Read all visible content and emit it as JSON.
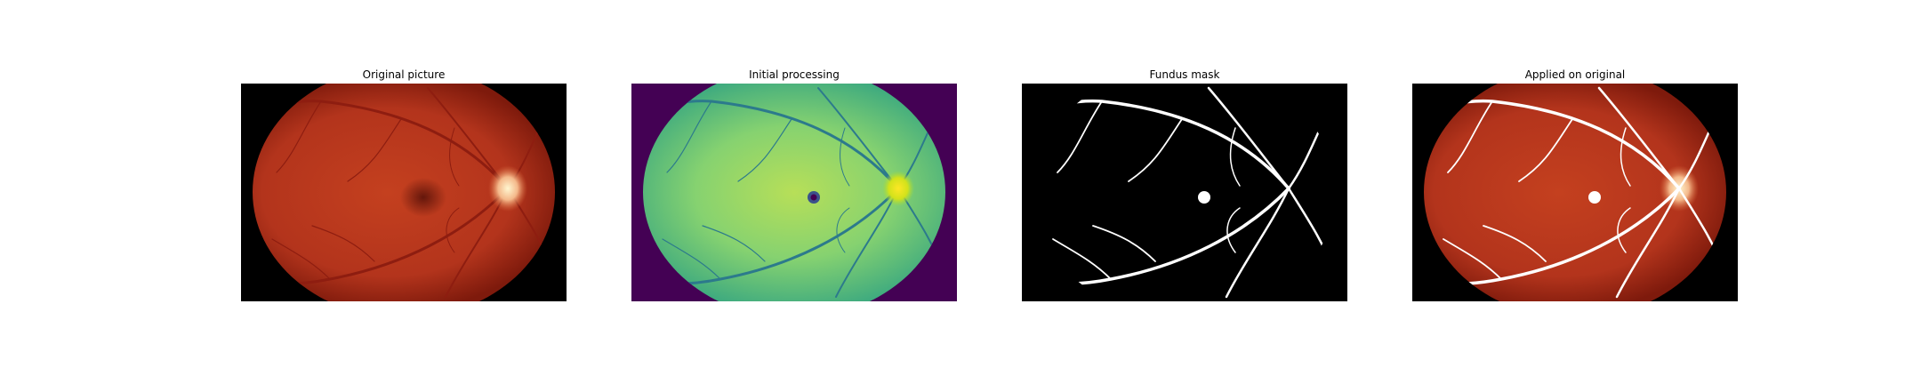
{
  "figure": {
    "panels": [
      {
        "title": "Original picture",
        "kind": "fundus-rgb"
      },
      {
        "title": "Initial processing",
        "kind": "fundus-viridis"
      },
      {
        "title": "Fundus mask",
        "kind": "vessel-mask"
      },
      {
        "title": "Applied on original",
        "kind": "mask-overlay"
      }
    ]
  },
  "colors": {
    "background": "#ffffff",
    "image_frame": "#000000",
    "retina_center": "#c0381f",
    "retina_edge": "#7e1a0c",
    "retina_vessel": "#8e1d10",
    "optic_disc": "#fff0b0",
    "viridis_background": "#440154",
    "viridis_mid": "#7dd27a",
    "viridis_light": "#b7df58",
    "viridis_vessel": "#2c7a8c",
    "viridis_disc": "#fde725",
    "mask_foreground": "#ffffff"
  }
}
